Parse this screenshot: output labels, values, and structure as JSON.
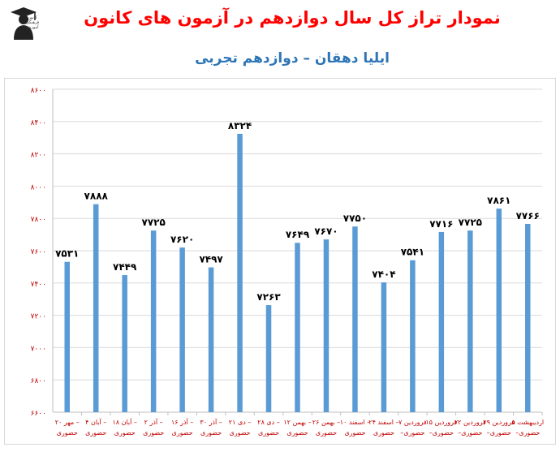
{
  "header": {
    "title": "نمودار تراز کل سال دوازدهم در آزمون های کانون",
    "subtitle": "ایلیا دهقان – دوازدهم تجربی"
  },
  "logo": {
    "icon": "graduate-icon",
    "text": "کانون فرهنگی آموزش"
  },
  "colors": {
    "bar": "#5b9bd5",
    "title": "#ff0000",
    "subtitle": "#2e75b6",
    "axis_text": "#c00000",
    "grid": "#d9d9d9"
  },
  "chart_data": {
    "type": "bar",
    "title": "نمودار تراز کل سال دوازدهم در آزمون های کانون",
    "subtitle": "ایلیا دهقان – دوازدهم تجربی",
    "categories": [
      [
        "۲۰ مهر –",
        "حضوری"
      ],
      [
        "۴ آبان –",
        "حضوری"
      ],
      [
        "۱۸ آبان –",
        "حضوری"
      ],
      [
        "۲ آذر –",
        "حضوری"
      ],
      [
        "۱۶ آذر –",
        "حضوری"
      ],
      [
        "۳۰ آذر –",
        "حضوری"
      ],
      [
        "۲۱ دی –",
        "حضوری"
      ],
      [
        "۲۸ دی –",
        "حضوری"
      ],
      [
        "۱۲ بهمن –",
        "حضوری"
      ],
      [
        "۲۶ بهمن –",
        "حضوری"
      ],
      [
        "۱۰ اسفند –",
        "حضوری"
      ],
      [
        "۲۴ اسفند –",
        "حضوری"
      ],
      [
        "۷ فروردین",
        "–حضوری"
      ],
      [
        "۱۵ فروردین",
        "–حضوری"
      ],
      [
        "۲۲ فروردین",
        "–حضوری"
      ],
      [
        "۲۹ فروردین",
        "–حضوری"
      ],
      [
        "۵ اردیبهشت",
        "–حضوری"
      ]
    ],
    "values": [
      7531,
      7888,
      7449,
      7725,
      7620,
      7497,
      8324,
      7263,
      7649,
      7670,
      7750,
      7404,
      7541,
      7716,
      7725,
      7861,
      7766
    ],
    "value_labels": [
      "۷۵۳۱",
      "۷۸۸۸",
      "۷۴۴۹",
      "۷۷۲۵",
      "۷۶۲۰",
      "۷۴۹۷",
      "۸۳۲۴",
      "۷۲۶۳",
      "۷۶۴۹",
      "۷۶۷۰",
      "۷۷۵۰",
      "۷۴۰۴",
      "۷۵۴۱",
      "۷۷۱۶",
      "۷۷۲۵",
      "۷۸۶۱",
      "۷۷۶۶"
    ],
    "ylim": [
      6600,
      8600
    ],
    "yticks": [
      6600,
      6800,
      7000,
      7200,
      7400,
      7600,
      7800,
      8000,
      8200,
      8400,
      8600
    ],
    "ytick_labels": [
      "۶۶۰۰",
      "۶۸۰۰",
      "۷۰۰۰",
      "۷۲۰۰",
      "۷۴۰۰",
      "۷۶۰۰",
      "۷۸۰۰",
      "۸۰۰۰",
      "۸۲۰۰",
      "۸۴۰۰",
      "۸۶۰۰"
    ],
    "grid": true,
    "legend": "none"
  }
}
